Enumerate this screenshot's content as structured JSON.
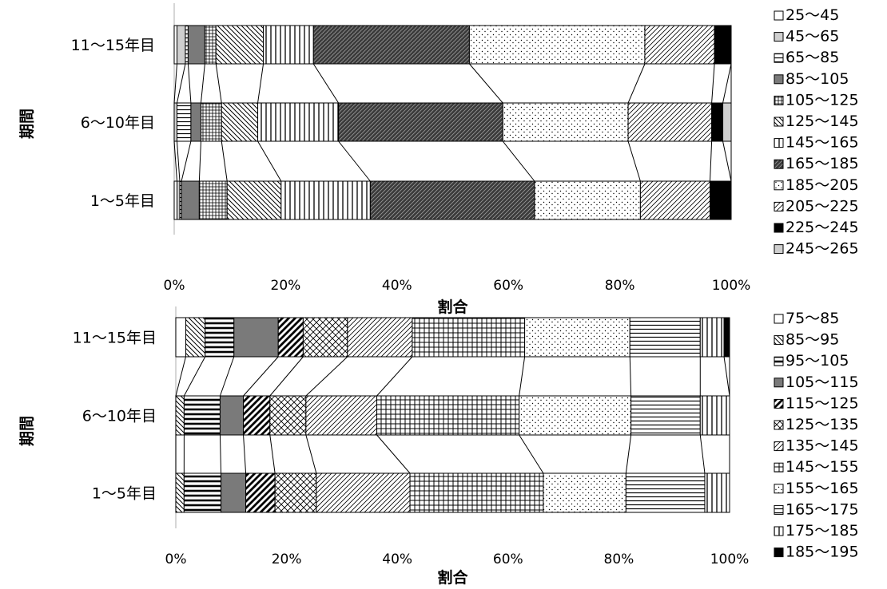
{
  "chart_data": [
    {
      "type": "bar",
      "stacked": true,
      "orientation": "horizontal",
      "percent_stacked": true,
      "categories": [
        "11～15年目",
        "6～10年目",
        "1～5年目"
      ],
      "xlabel": "割合",
      "ylabel": "期間",
      "xlim": [
        0,
        100
      ],
      "xticks": [
        "0%",
        "20%",
        "40%",
        "60%",
        "80%",
        "100%"
      ],
      "legend_position": "right",
      "series": [
        {
          "name": "25～45",
          "values": [
            0.5,
            0.0,
            0.5
          ]
        },
        {
          "name": "45～65",
          "values": [
            1.5,
            0.5,
            0.5
          ]
        },
        {
          "name": "65～85",
          "values": [
            0.5,
            2.5,
            0.3
          ]
        },
        {
          "name": "85～105",
          "values": [
            3.0,
            1.8,
            3.2
          ]
        },
        {
          "name": "105～125",
          "values": [
            2.0,
            3.7,
            5.0
          ]
        },
        {
          "name": "125～145",
          "values": [
            8.5,
            6.5,
            9.7
          ]
        },
        {
          "name": "145～165",
          "values": [
            9.0,
            14.5,
            16.0
          ]
        },
        {
          "name": "165～185",
          "values": [
            28.0,
            29.5,
            29.5
          ]
        },
        {
          "name": "185～205",
          "values": [
            31.5,
            22.5,
            19.0
          ]
        },
        {
          "name": "205～225",
          "values": [
            12.5,
            15.0,
            12.5
          ]
        },
        {
          "name": "225～245",
          "values": [
            3.0,
            2.0,
            3.8
          ]
        },
        {
          "name": "245～265",
          "values": [
            0.0,
            1.5,
            0.0
          ]
        }
      ]
    },
    {
      "type": "bar",
      "stacked": true,
      "orientation": "horizontal",
      "percent_stacked": true,
      "categories": [
        "11～15年目",
        "6～10年目",
        "1～5年目"
      ],
      "xlabel": "割合",
      "ylabel": "期間",
      "xlim": [
        0,
        100
      ],
      "xticks": [
        "0%",
        "20%",
        "40%",
        "60%",
        "80%",
        "100%"
      ],
      "legend_position": "right",
      "series": [
        {
          "name": "75～85",
          "values": [
            1.8,
            0.0,
            0.0
          ]
        },
        {
          "name": "85～95",
          "values": [
            3.5,
            1.5,
            1.5
          ]
        },
        {
          "name": "95～105",
          "values": [
            5.2,
            6.5,
            6.7
          ]
        },
        {
          "name": "105～115",
          "values": [
            8.0,
            4.2,
            4.5
          ]
        },
        {
          "name": "115～125",
          "values": [
            4.5,
            4.8,
            5.3
          ]
        },
        {
          "name": "125～135",
          "values": [
            8.0,
            6.5,
            7.5
          ]
        },
        {
          "name": "135～145",
          "values": [
            11.7,
            12.8,
            17.0
          ]
        },
        {
          "name": "145～155",
          "values": [
            20.3,
            25.7,
            24.2
          ]
        },
        {
          "name": "155～165",
          "values": [
            19.0,
            20.2,
            15.0
          ]
        },
        {
          "name": "165～175",
          "values": [
            12.7,
            12.5,
            14.3
          ]
        },
        {
          "name": "175～185",
          "values": [
            4.3,
            5.3,
            4.5
          ]
        },
        {
          "name": "185～195",
          "values": [
            1.0,
            0.0,
            0.0
          ]
        }
      ]
    }
  ]
}
